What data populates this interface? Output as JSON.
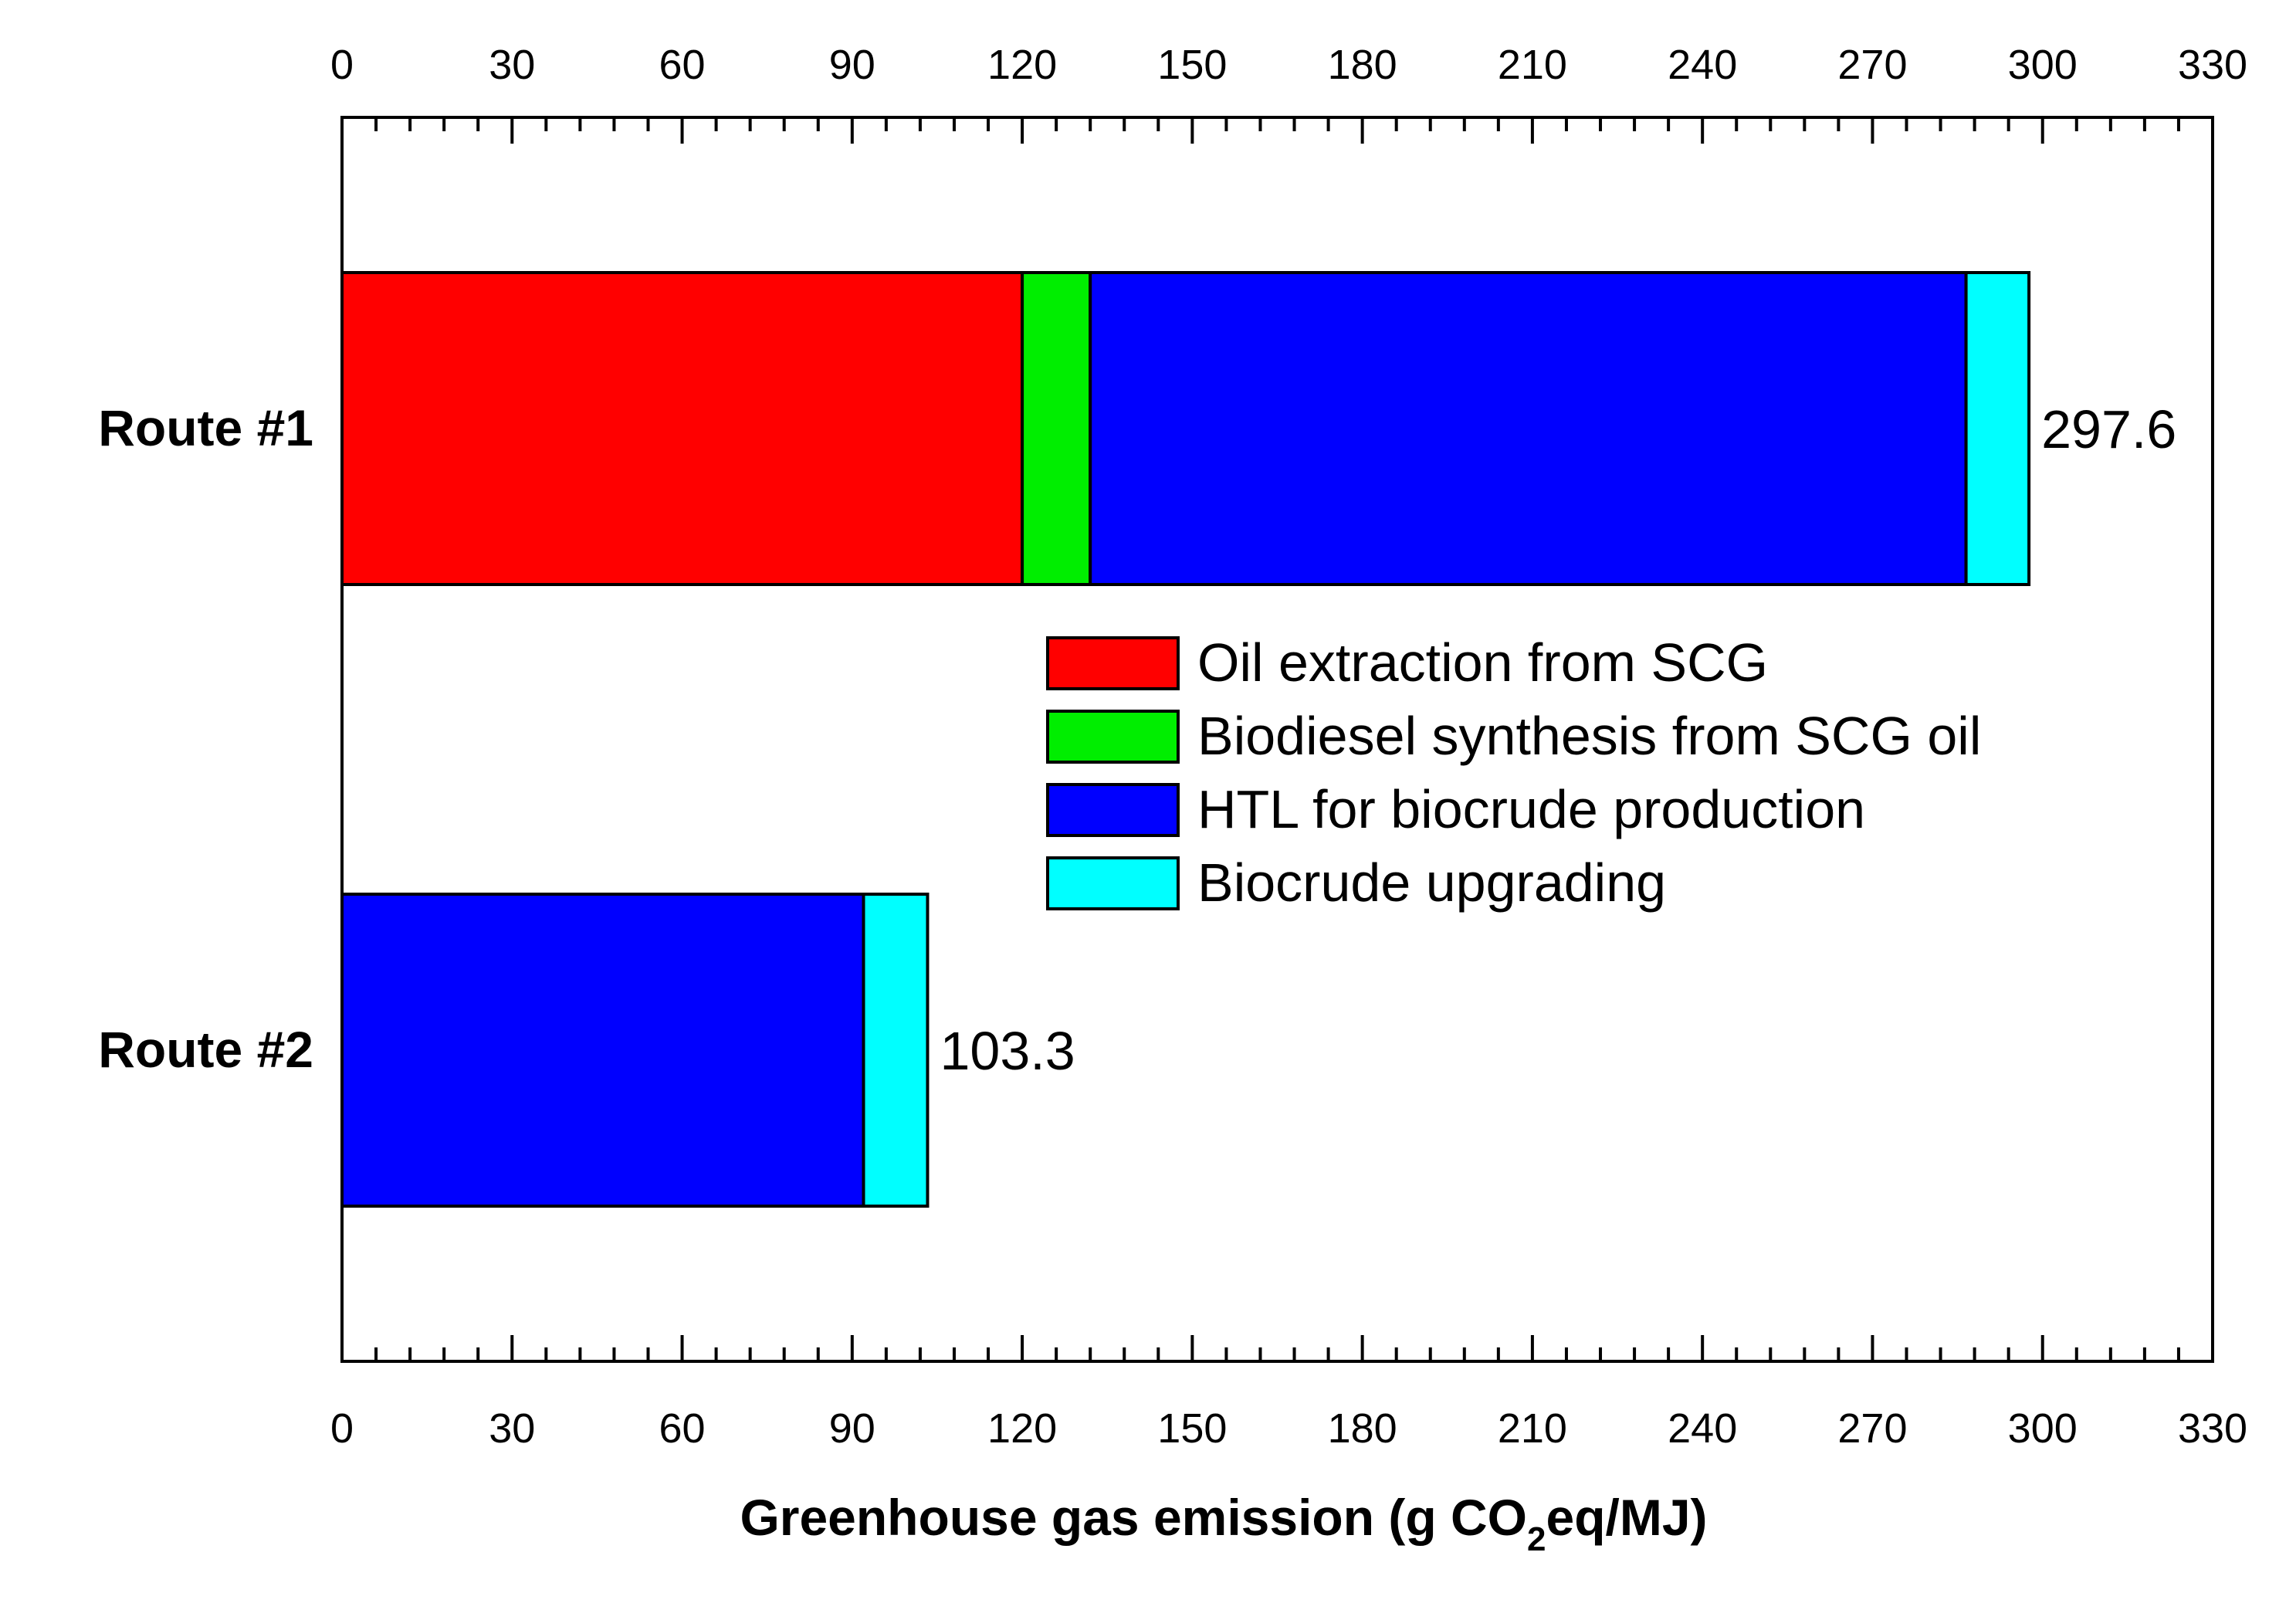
{
  "chart_data": {
    "type": "bar",
    "orientation": "horizontal",
    "stacked": true,
    "categories": [
      "Route #1",
      "Route #2"
    ],
    "series": [
      {
        "name": "Oil extraction from SCG",
        "color": "#ff0000",
        "values": [
          120,
          0
        ]
      },
      {
        "name": "Biodiesel synthesis from SCG oil",
        "color": "#00ee00",
        "values": [
          12,
          0
        ]
      },
      {
        "name": "HTL for biocrude production",
        "color": "#0000ff",
        "values": [
          154.5,
          92
        ]
      },
      {
        "name": "Biocrude upgrading",
        "color": "#00ffff",
        "values": [
          11.1,
          11.3
        ]
      }
    ],
    "totals": [
      "297.6",
      "103.3"
    ],
    "xlim": [
      0,
      330
    ],
    "xticks": [
      "0",
      "30",
      "60",
      "90",
      "120",
      "150",
      "180",
      "210",
      "240",
      "270",
      "300",
      "330"
    ],
    "xlabel": {
      "prefix": "Greenhouse gas emission (g CO",
      "subscript": "2",
      "suffix": "eq/MJ)"
    },
    "legend_position": "center-right",
    "grid": false
  }
}
